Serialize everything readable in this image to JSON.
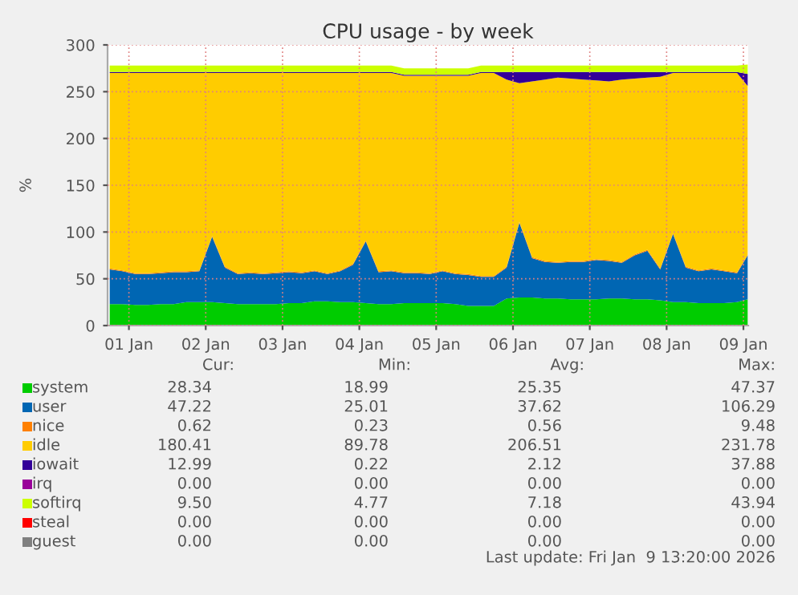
{
  "chart_data": {
    "type": "area",
    "stacked": true,
    "title": "CPU usage - by week",
    "ylabel": "%",
    "x": [
      "2026-01-01T06:00",
      "2026-01-01T10:00",
      "2026-01-01T14:00",
      "2026-01-01T18:00",
      "2026-01-01T22:00",
      "2026-01-02T02:00",
      "2026-01-02T06:00",
      "2026-01-02T10:00",
      "2026-01-02T14:00",
      "2026-01-02T18:00",
      "2026-01-02T22:00",
      "2026-01-03T02:00",
      "2026-01-03T06:00",
      "2026-01-03T10:00",
      "2026-01-03T14:00",
      "2026-01-03T18:00",
      "2026-01-03T22:00",
      "2026-01-04T02:00",
      "2026-01-04T06:00",
      "2026-01-04T10:00",
      "2026-01-04T14:00",
      "2026-01-04T18:00",
      "2026-01-04T22:00",
      "2026-01-05T02:00",
      "2026-01-05T06:00",
      "2026-01-05T10:00",
      "2026-01-05T14:00",
      "2026-01-05T18:00",
      "2026-01-05T22:00",
      "2026-01-06T02:00",
      "2026-01-06T06:00",
      "2026-01-06T10:00",
      "2026-01-06T14:00",
      "2026-01-06T18:00",
      "2026-01-06T22:00",
      "2026-01-07T02:00",
      "2026-01-07T06:00",
      "2026-01-07T10:00",
      "2026-01-07T14:00",
      "2026-01-07T18:00",
      "2026-01-07T22:00",
      "2026-01-08T02:00",
      "2026-01-08T06:00",
      "2026-01-08T10:00",
      "2026-01-08T14:00",
      "2026-01-08T18:00",
      "2026-01-08T22:00",
      "2026-01-09T02:00",
      "2026-01-09T06:00",
      "2026-01-09T10:00",
      "2026-01-09T13:20"
    ],
    "series": [
      {
        "name": "system",
        "color": "#00cc00",
        "values": [
          23,
          23,
          22,
          22,
          23,
          23,
          25,
          25,
          25,
          24,
          23,
          23,
          23,
          23,
          24,
          24,
          26,
          26,
          25,
          25,
          24,
          23,
          23,
          24,
          24,
          24,
          24,
          23,
          21,
          21,
          21,
          29,
          30,
          30,
          29,
          29,
          28,
          28,
          28,
          29,
          29,
          28,
          28,
          27,
          25,
          25,
          24,
          24,
          24,
          25,
          28
        ]
      },
      {
        "name": "user",
        "color": "#0066b3",
        "values": [
          37,
          35,
          33,
          33,
          33,
          34,
          32,
          33,
          70,
          38,
          32,
          33,
          32,
          33,
          33,
          32,
          32,
          29,
          33,
          40,
          66,
          34,
          35,
          32,
          32,
          31,
          34,
          32,
          33,
          31,
          31,
          33,
          80,
          42,
          39,
          38,
          40,
          40,
          42,
          40,
          38,
          47,
          52,
          33,
          73,
          37,
          34,
          36,
          34,
          31,
          47
        ]
      },
      {
        "name": "nice",
        "color": "#ff8000",
        "values": [
          1,
          1,
          1,
          1,
          1,
          1,
          1,
          1,
          1,
          1,
          1,
          1,
          1,
          1,
          1,
          1,
          1,
          1,
          1,
          1,
          1,
          1,
          1,
          1,
          1,
          1,
          1,
          1,
          1,
          1,
          1,
          1,
          1,
          1,
          1,
          1,
          1,
          1,
          1,
          1,
          1,
          1,
          1,
          1,
          1,
          1,
          1,
          1,
          1,
          1,
          1
        ]
      },
      {
        "name": "idle",
        "color": "#ffcc00",
        "values": [
          209,
          211,
          214,
          214,
          213,
          212,
          212,
          211,
          174,
          207,
          214,
          213,
          214,
          213,
          212,
          213,
          211,
          214,
          211,
          204,
          179,
          212,
          211,
          210,
          210,
          211,
          208,
          211,
          212,
          217,
          217,
          200,
          148,
          188,
          194,
          197,
          195,
          194,
          191,
          191,
          195,
          188,
          184,
          205,
          171,
          207,
          211,
          209,
          211,
          213,
          180
        ]
      },
      {
        "name": "iowait",
        "color": "#330099",
        "values": [
          1,
          1,
          1,
          1,
          1,
          1,
          1,
          1,
          1,
          1,
          1,
          1,
          1,
          1,
          1,
          1,
          1,
          1,
          1,
          1,
          1,
          1,
          1,
          1,
          1,
          1,
          1,
          1,
          1,
          1,
          1,
          8,
          12,
          10,
          8,
          6,
          7,
          8,
          9,
          10,
          8,
          7,
          6,
          5,
          1,
          1,
          1,
          1,
          1,
          1,
          13
        ]
      },
      {
        "name": "irq",
        "color": "#990099",
        "values": [
          null,
          null,
          null,
          null,
          null,
          null,
          null,
          null,
          null,
          null,
          null,
          null,
          null,
          null,
          null,
          null,
          null,
          null,
          null,
          null,
          null,
          null,
          null,
          null,
          null,
          null,
          null,
          null,
          null,
          null,
          null,
          null,
          null,
          null,
          null,
          null,
          null,
          null,
          null,
          null,
          null,
          null,
          null,
          null,
          null,
          null,
          null,
          null,
          null,
          null,
          null
        ]
      },
      {
        "name": "softirq",
        "color": "#ccff00",
        "values": [
          7,
          7,
          7,
          7,
          7,
          7,
          7,
          7,
          7,
          7,
          7,
          7,
          7,
          7,
          7,
          7,
          7,
          7,
          7,
          7,
          7,
          7,
          7,
          7,
          7,
          7,
          7,
          7,
          7,
          7,
          7,
          7,
          7,
          7,
          7,
          7,
          7,
          7,
          7,
          7,
          7,
          7,
          7,
          7,
          7,
          7,
          7,
          7,
          7,
          7,
          10
        ]
      },
      {
        "name": "steal",
        "color": "#ff0000",
        "values": [
          null,
          null,
          null,
          null,
          null,
          null,
          null,
          null,
          null,
          null,
          null,
          null,
          null,
          null,
          null,
          null,
          null,
          null,
          null,
          null,
          null,
          null,
          null,
          null,
          null,
          null,
          null,
          null,
          null,
          null,
          null,
          null,
          null,
          null,
          null,
          null,
          null,
          null,
          null,
          null,
          null,
          null,
          null,
          null,
          null,
          null,
          null,
          null,
          null,
          null,
          null
        ]
      },
      {
        "name": "guest",
        "color": "#808080",
        "values": [
          null,
          null,
          null,
          null,
          null,
          null,
          null,
          null,
          null,
          null,
          null,
          null,
          null,
          null,
          null,
          null,
          null,
          null,
          null,
          null,
          null,
          null,
          null,
          null,
          null,
          null,
          null,
          null,
          null,
          null,
          null,
          null,
          null,
          null,
          null,
          null,
          null,
          null,
          null,
          null,
          null,
          null,
          null,
          null,
          null,
          null,
          null,
          null,
          null,
          null,
          null
        ]
      }
    ],
    "xlim": [
      "2026-01-01T05:20",
      "2026-01-09T13:30"
    ],
    "xticks": [
      {
        "value": "2026-01-01T12:00",
        "label": "01 Jan"
      },
      {
        "value": "2026-01-02T12:00",
        "label": "02 Jan"
      },
      {
        "value": "2026-01-03T12:00",
        "label": "03 Jan"
      },
      {
        "value": "2026-01-04T12:00",
        "label": "04 Jan"
      },
      {
        "value": "2026-01-05T12:00",
        "label": "05 Jan"
      },
      {
        "value": "2026-01-06T12:00",
        "label": "06 Jan"
      },
      {
        "value": "2026-01-07T12:00",
        "label": "07 Jan"
      },
      {
        "value": "2026-01-08T12:00",
        "label": "08 Jan"
      },
      {
        "value": "2026-01-09T12:00",
        "label": "09 Jan"
      }
    ],
    "ylim": [
      0,
      300
    ],
    "yticks": [
      0,
      50,
      100,
      150,
      200,
      250,
      300
    ],
    "grid": true,
    "legend": "bottom",
    "annotations": [
      "Cur:",
      "Min:",
      "Avg:",
      "Max:",
      "28.34",
      "18.99",
      "25.35",
      "47.37",
      "47.22",
      "25.01",
      "37.62",
      "106.29",
      "0.62",
      "0.23",
      "0.56",
      "9.48",
      "180.41",
      "89.78",
      "206.51",
      "231.78",
      "12.99",
      "0.22",
      "2.12",
      "37.88",
      "0.00",
      "0.00",
      "0.00",
      "0.00",
      "9.50",
      "4.77",
      "7.18",
      "43.94",
      "0.00",
      "0.00",
      "0.00",
      "0.00",
      "0.00",
      "0.00",
      "0.00",
      "0.00",
      "Last update: Fri Jan  9 13:20:00 2026"
    ]
  }
}
